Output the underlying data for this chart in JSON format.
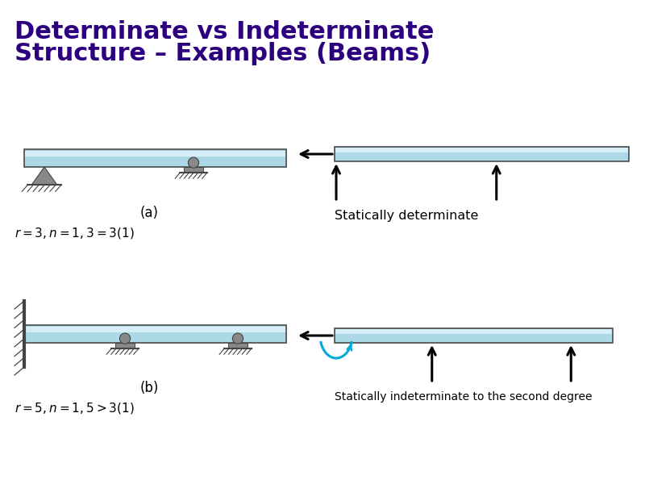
{
  "title_line1": "Determinate vs Indeterminate",
  "title_line2": "Structure – Examples (Beams)",
  "title_color": "#2d0080",
  "title_fontsize": 22,
  "bg_color": "#ffffff",
  "beam_fill": "#add8e6",
  "beam_fill_light": "#d6eef8",
  "beam_edge": "#4a4a4a",
  "label_a": "(a)",
  "label_b": "(b)",
  "eq_a": "r = 3, n = 1, 3 = 3(1)",
  "eq_b": "r = 5, n = 1, 5 > 3(1)",
  "text_det": "Statically determinate",
  "text_indet": "Statically indeterminate to the second degree",
  "support_gray": "#888888",
  "support_dark": "#444444",
  "arrow_color": "#000000",
  "moment_color": "#00aadd"
}
